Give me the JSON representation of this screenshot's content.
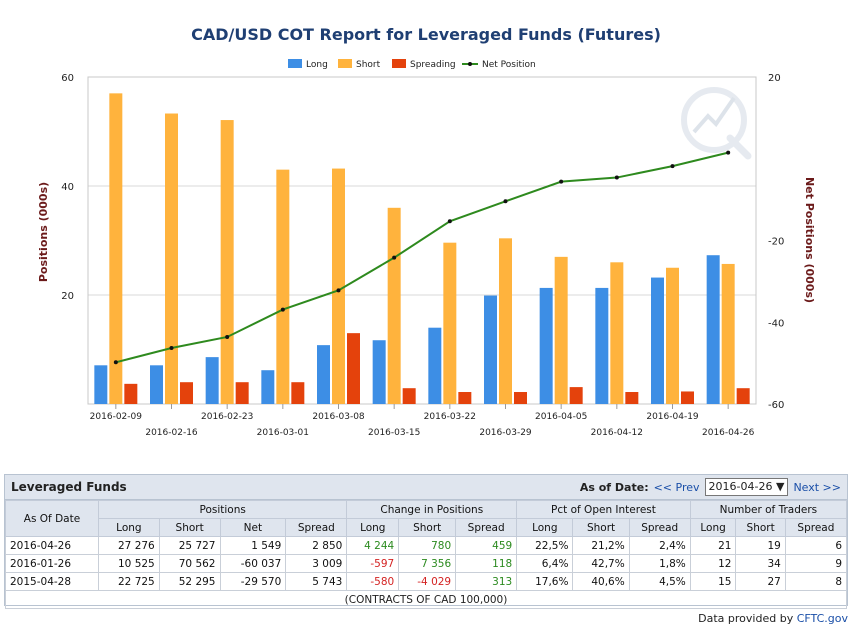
{
  "chart_data": {
    "type": "bar",
    "title": "CAD/USD COT Report for Leveraged Funds (Futures)",
    "ylabel": "Positions (000s)",
    "y2label": "Net Positions (000s)",
    "ylim": [
      0,
      60
    ],
    "y2lim": [
      -60,
      20
    ],
    "yticks": [
      20,
      40,
      60
    ],
    "y2ticks": [
      -60,
      -40,
      -20,
      20
    ],
    "grid": true,
    "legend_position": "top-center",
    "categories": [
      "2016-02-09",
      "2016-02-16",
      "2016-02-23",
      "2016-03-01",
      "2016-03-08",
      "2016-03-15",
      "2016-03-22",
      "2016-03-29",
      "2016-04-05",
      "2016-04-12",
      "2016-04-19",
      "2016-04-26"
    ],
    "series": [
      {
        "name": "Long",
        "type": "bar",
        "axis": "left",
        "color": "#3d8ee5",
        "values": [
          7.1,
          7.1,
          8.6,
          6.2,
          10.8,
          11.7,
          14.0,
          19.9,
          21.3,
          21.3,
          23.2,
          27.3
        ]
      },
      {
        "name": "Short",
        "type": "bar",
        "axis": "left",
        "color": "#ffb33d",
        "values": [
          57.0,
          53.3,
          52.1,
          43.0,
          43.2,
          36.0,
          29.6,
          30.4,
          27.0,
          26.0,
          25.0,
          25.7
        ]
      },
      {
        "name": "Spreading",
        "type": "bar",
        "axis": "left",
        "color": "#e4420c",
        "values": [
          3.7,
          4.0,
          4.0,
          4.0,
          13.0,
          2.9,
          2.2,
          2.2,
          3.1,
          2.2,
          2.3,
          2.9
        ]
      },
      {
        "name": "Net Position",
        "type": "line",
        "axis": "right",
        "color": "#2e8a1e",
        "values": [
          -49.8,
          -46.3,
          -43.6,
          -36.9,
          -32.2,
          -24.2,
          -15.3,
          -10.4,
          -5.6,
          -4.6,
          -1.8,
          1.5
        ]
      }
    ]
  },
  "colors": {
    "title": "#1f3f73",
    "axis_label": "#6b1a1a",
    "grid": "#d8d8d8"
  },
  "table": {
    "title": "Leveraged Funds",
    "asof_label": "As of Date:",
    "prev_label": "<< Prev",
    "next_label": "Next >>",
    "selected_date": "2016-04-26",
    "row_header": "As Of Date",
    "groups": {
      "positions": "Positions",
      "change": "Change in Positions",
      "pct": "Pct of Open Interest",
      "traders": "Number of Traders"
    },
    "cols": {
      "long": "Long",
      "short": "Short",
      "net": "Net",
      "spread": "Spread"
    },
    "rows": [
      {
        "date": "2016-04-26",
        "long": "27 276",
        "short": "25 727",
        "net": "1 549",
        "spread": "2 850",
        "ch_long": "4 244",
        "ch_short": "780",
        "ch_spread": "459",
        "pct_long": "22,5%",
        "pct_short": "21,2%",
        "pct_spread": "2,4%",
        "tr_long": "21",
        "tr_short": "19",
        "tr_spread": "6"
      },
      {
        "date": "2016-01-26",
        "long": "10 525",
        "short": "70 562",
        "net": "-60 037",
        "spread": "3 009",
        "ch_long": "-597",
        "ch_short": "7 356",
        "ch_spread": "118",
        "pct_long": "6,4%",
        "pct_short": "42,7%",
        "pct_spread": "1,8%",
        "tr_long": "12",
        "tr_short": "34",
        "tr_spread": "9"
      },
      {
        "date": "2015-04-28",
        "long": "22 725",
        "short": "52 295",
        "net": "-29 570",
        "spread": "5 743",
        "ch_long": "-580",
        "ch_short": "-4 029",
        "ch_spread": "313",
        "pct_long": "17,6%",
        "pct_short": "40,6%",
        "pct_spread": "4,5%",
        "tr_long": "15",
        "tr_short": "27",
        "tr_spread": "8"
      }
    ],
    "note": "(CONTRACTS OF CAD 100,000)"
  },
  "footer": {
    "prefix": "Data provided by ",
    "source": "CFTC.gov"
  }
}
